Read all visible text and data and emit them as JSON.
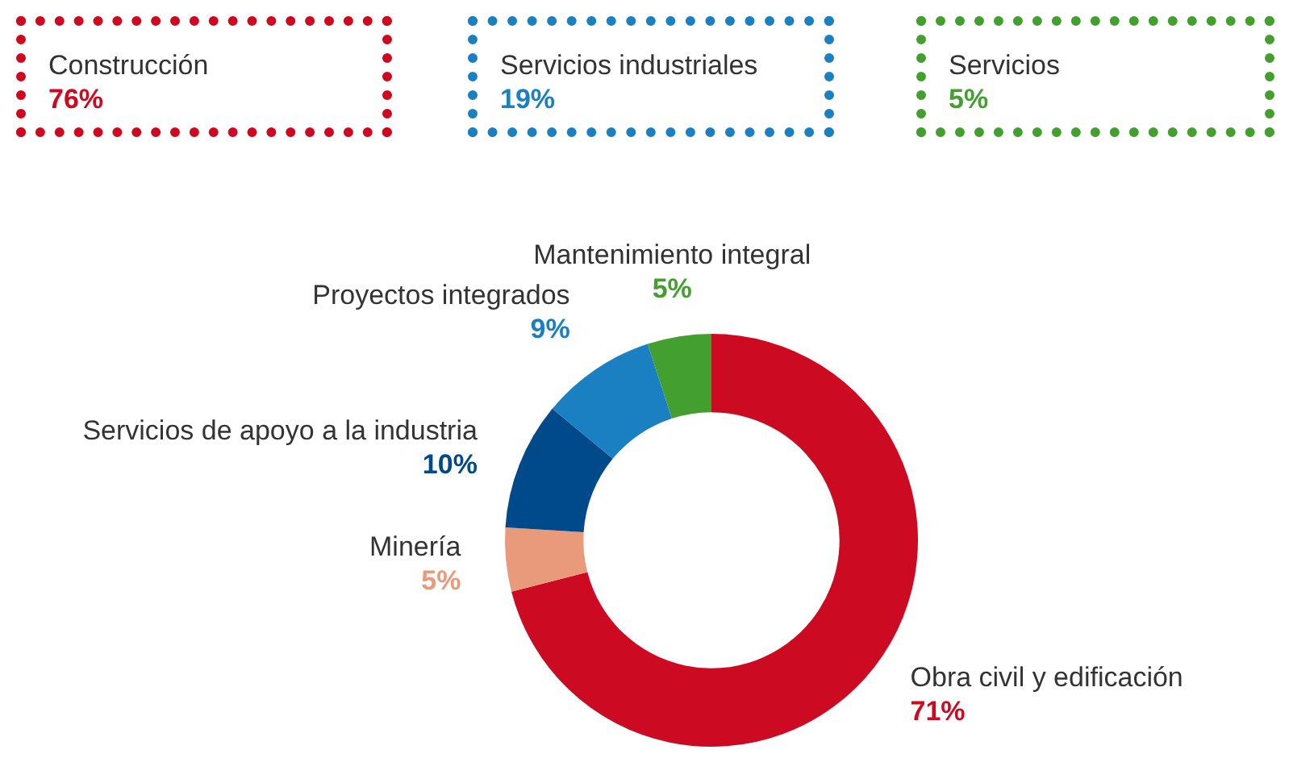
{
  "chart_data": [
    {
      "type": "other",
      "annotations": [
        "Construcción",
        "76%",
        "Servicios industriales",
        "19%",
        "Servicios",
        "5%"
      ]
    },
    {
      "type": "donut",
      "categories": [
        "Obra civil y edificación",
        "Minería",
        "Servicios de apoyo a la industria",
        "Proyectos integrados",
        "Mantenimiento integral"
      ],
      "values": [
        71,
        5,
        10,
        9,
        5
      ],
      "colors": [
        "#cc0a22",
        "#e89a7a",
        "#004a8c",
        "#1a80c2",
        "#43a02f"
      ],
      "value_labels": [
        "71%",
        "5%",
        "10%",
        "9%",
        "5%"
      ],
      "legend": false
    }
  ]
}
